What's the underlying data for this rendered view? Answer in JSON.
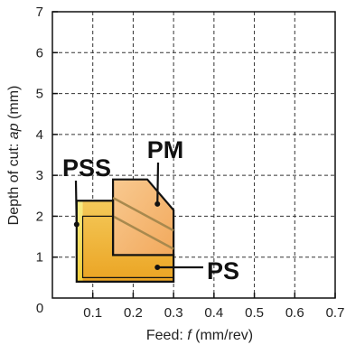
{
  "chart_data": {
    "type": "area",
    "title": "",
    "xlabel_prefix": "Feed: ",
    "xlabel_var": "f",
    "xlabel_suffix": " (mm/rev)",
    "ylabel_prefix": "Depth of cut: ",
    "ylabel_var": "ap",
    "ylabel_suffix": " (mm)",
    "xlim": [
      0,
      0.7
    ],
    "ylim": [
      0,
      7
    ],
    "grid": true,
    "grid_style": "dashed",
    "x_ticks": [
      {
        "value": 0.1,
        "label": "0.1"
      },
      {
        "value": 0.2,
        "label": "0.2"
      },
      {
        "value": 0.3,
        "label": "0.3"
      },
      {
        "value": 0.4,
        "label": "0.4"
      },
      {
        "value": 0.5,
        "label": "0.5"
      },
      {
        "value": 0.6,
        "label": "0.6"
      },
      {
        "value": 0.7,
        "label": "0.7"
      }
    ],
    "y_ticks": [
      {
        "value": 1,
        "label": "1"
      },
      {
        "value": 2,
        "label": "2"
      },
      {
        "value": 3,
        "label": "3"
      },
      {
        "value": 4,
        "label": "4"
      },
      {
        "value": 5,
        "label": "5"
      },
      {
        "value": 6,
        "label": "6"
      },
      {
        "value": 7,
        "label": "7"
      }
    ],
    "origin_label": "0",
    "regions": [
      {
        "name": "PSS",
        "color": "#f5e06a",
        "polygon": [
          [
            0.06,
            0.4
          ],
          [
            0.075,
            0.4
          ],
          [
            0.075,
            2.38
          ],
          [
            0.06,
            2.38
          ]
        ]
      },
      {
        "name": "PM",
        "color": "#f6b97a",
        "polygon": [
          [
            0.15,
            1.05
          ],
          [
            0.15,
            2.9
          ],
          [
            0.235,
            2.9
          ],
          [
            0.3,
            2.15
          ],
          [
            0.3,
            1.05
          ]
        ]
      },
      {
        "name": "PS",
        "color": "#f0b23a",
        "polygon": [
          [
            0.075,
            0.4
          ],
          [
            0.075,
            2.38
          ],
          [
            0.15,
            2.38
          ],
          [
            0.15,
            1.05
          ],
          [
            0.3,
            1.05
          ],
          [
            0.3,
            0.4
          ]
        ]
      }
    ],
    "annotations": [
      {
        "text": "PSS",
        "target": [
          0.06,
          1.8
        ]
      },
      {
        "text": "PM",
        "target": [
          0.26,
          2.3
        ]
      },
      {
        "text": "PS",
        "target": [
          0.26,
          0.75
        ]
      }
    ]
  }
}
